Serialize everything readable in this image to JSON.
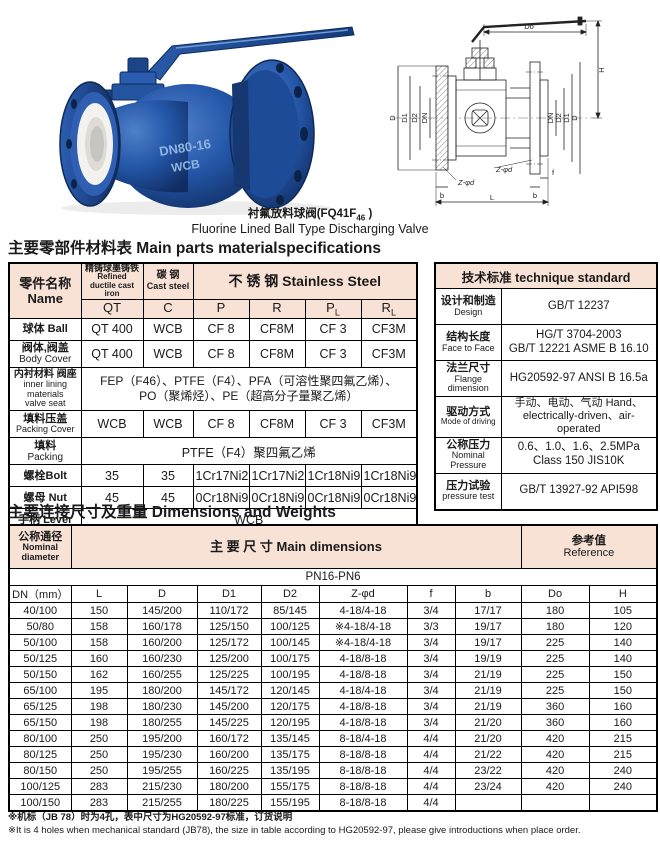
{
  "colors": {
    "accent_peach": "#f8e2d6",
    "valve_blue": "#1d4f9e",
    "border": "#000000"
  },
  "caption": {
    "zh_pre": "衬氟放料球阀(FQ41F",
    "zh_sub": "46",
    "zh_post": " )",
    "en": "Fluorine Lined Ball Type Discharging Valve"
  },
  "sections": {
    "materials_title": "主要零部件材料表 Main parts materialspecifications",
    "dimensions_title": "主要连接尺寸及重量 Dimensions and Weights"
  },
  "photo": {
    "mark_line1": "DN80-16",
    "mark_line2": "WCB"
  },
  "drawing": {
    "labels": {
      "do": "Do",
      "h": "H",
      "d": "D",
      "d1": "D1",
      "d2": "D2",
      "dn": "DN",
      "l": "L",
      "b": "b",
      "f": "f",
      "zd": "Z-φd"
    }
  },
  "materials_table": {
    "header": {
      "name_zh": "零件名称",
      "name_en": "Name",
      "qt_zh": "精铸球墨铸铁",
      "qt_en1": "Refined",
      "qt_en2": "ductile cast iron",
      "c_zh": "碳  钢",
      "c_en": "Cast steel",
      "ss": "不 锈 钢 Stainless Steel",
      "cols": [
        {
          "t": "QT",
          "s": ""
        },
        {
          "t": "C",
          "s": ""
        },
        {
          "t": "P",
          "s": ""
        },
        {
          "t": "R",
          "s": ""
        },
        {
          "t": "P",
          "s": "L"
        },
        {
          "t": "R",
          "s": "L"
        }
      ]
    },
    "rows": {
      "ball": {
        "zh": "球体 Ball",
        "cells": [
          "QT 400",
          "WCB",
          "CF 8",
          "CF8M",
          "CF 3",
          "CF3M"
        ]
      },
      "body": {
        "zh": "阀体,阀盖",
        "en": "Body Cover",
        "cells": [
          "QT 400",
          "WCB",
          "CF 8",
          "CF8M",
          "CF 3",
          "CF3M"
        ]
      },
      "lining": {
        "zh": "内衬材料 阀座",
        "en1": "inner lining",
        "en2": "materials",
        "en3": "valve seat",
        "value1": "FEP（F46）、PTFE（F4）、PFA（可溶性聚四氟乙烯）、",
        "value2": "PO（聚烯烃）、PE（超高分子量聚乙烯）"
      },
      "packing_cover": {
        "zh": "填料压盖",
        "en": "Packing Cover",
        "cells": [
          "WCB",
          "WCB",
          "CF 8",
          "CF8M",
          "CF 3",
          "CF3M"
        ]
      },
      "packing": {
        "zh": "填料",
        "en": "Packing",
        "value": "PTFE（F4）聚四氟乙烯"
      },
      "bolt": {
        "zh": "螺栓Bolt",
        "cells": [
          "35",
          "35",
          "1Cr17Ni2",
          "1Cr17Ni2",
          "1Cr18Ni9",
          "1Cr18Ni9"
        ]
      },
      "nut": {
        "zh": "螺母 Nut",
        "cells": [
          "45",
          "45",
          "0Cr18Ni9",
          "0Cr18Ni9",
          "0Cr18Ni9",
          "0Cr18Ni9"
        ]
      },
      "lever": {
        "zh": "手柄 Lever",
        "value": "WCB"
      }
    }
  },
  "tech_table": {
    "title": "技术标准 technique standard",
    "rows": [
      {
        "zh": "设计和制造",
        "en": "Design",
        "v1": "GB/T 12237"
      },
      {
        "zh": "结构长度",
        "en": "Face to Face",
        "v1": "HG/T 3704-2003",
        "v2": "GB/T 12221  ASME B 16.10"
      },
      {
        "zh": "法兰尺寸",
        "en": "Flange",
        "en2": "dimension",
        "v1": "HG20592-97 ANSI B 16.5a"
      },
      {
        "zh": "驱动方式",
        "en": "Mode of driving",
        "v1": "手动、电动、气动 Hand、",
        "v2": "electrically-driven、air-operated"
      },
      {
        "zh": "公称压力",
        "en": "Nominal",
        "en2": "Pressure",
        "v1": "0.6、1.0、1.6、2.5MPa",
        "v2": "Class 150 JIS10K"
      },
      {
        "zh": "压力试验",
        "en": "pressure test",
        "v1": "GB/T 13927-92  API598"
      }
    ]
  },
  "dims_table": {
    "nominal_zh": "公称通径",
    "nominal_en1": "Nominal",
    "nominal_en2": "diameter",
    "main_header": "主 要 尺 寸 Main dimensions",
    "ref_zh": "参考值",
    "ref_en": "Reference",
    "pn": "PN16-PN6",
    "columns": [
      "DN（mm）",
      "L",
      "D",
      "D1",
      "D2",
      "Z-φd",
      "f",
      "b",
      "Do",
      "H"
    ],
    "rows": [
      [
        "40/100",
        "150",
        "145/200",
        "110/172",
        "85/145",
        "4-18/4-18",
        "3/4",
        "17/17",
        "180",
        "105"
      ],
      [
        "50/80",
        "158",
        "160/178",
        "125/150",
        "100/125",
        "※4-18/4-18",
        "3/3",
        "19/17",
        "180",
        "120"
      ],
      [
        "50/100",
        "158",
        "160/200",
        "125/172",
        "100/145",
        "※4-18/4-18",
        "3/4",
        "19/17",
        "225",
        "140"
      ],
      [
        "50/125",
        "160",
        "160/230",
        "125/200",
        "100/175",
        "4-18/8-18",
        "3/4",
        "19/19",
        "225",
        "140"
      ],
      [
        "50/150",
        "162",
        "160/255",
        "125/225",
        "100/195",
        "4-18/8-18",
        "3/4",
        "21/19",
        "225",
        "150"
      ],
      [
        "65/100",
        "195",
        "180/200",
        "145/172",
        "120/145",
        "4-18/4-18",
        "3/4",
        "21/19",
        "225",
        "150"
      ],
      [
        "65/125",
        "198",
        "180/230",
        "145/200",
        "120/175",
        "4-18/8-18",
        "3/4",
        "21/19",
        "360",
        "160"
      ],
      [
        "65/150",
        "198",
        "180/255",
        "145/225",
        "120/195",
        "4-18/8-18",
        "3/4",
        "21/20",
        "360",
        "160"
      ],
      [
        "80/100",
        "250",
        "195/200",
        "160/172",
        "135/145",
        "8-18/4-18",
        "4/4",
        "21/20",
        "420",
        "215"
      ],
      [
        "80/125",
        "250",
        "195/230",
        "160/200",
        "135/175",
        "8-18/8-18",
        "4/4",
        "21/22",
        "420",
        "215"
      ],
      [
        "80/150",
        "250",
        "195/255",
        "160/225",
        "135/195",
        "8-18/8-18",
        "4/4",
        "23/22",
        "420",
        "240"
      ],
      [
        "100/125",
        "283",
        "215/230",
        "180/200",
        "155/175",
        "8-18/8-18",
        "4/4",
        "23/24",
        "420",
        "240"
      ],
      [
        "100/150",
        "283",
        "215/255",
        "180/225",
        "155/195",
        "8-18/8-18",
        "4/4",
        "",
        "",
        ""
      ]
    ]
  },
  "footnotes": {
    "zh": "※机标（JB 78）时为4孔，表中尺寸为HG20592-97标准，订货说明",
    "en": "※It is 4 holes when mechanical standard (JB78), the size in table according to HG20592-97, please give introductions when place order."
  }
}
